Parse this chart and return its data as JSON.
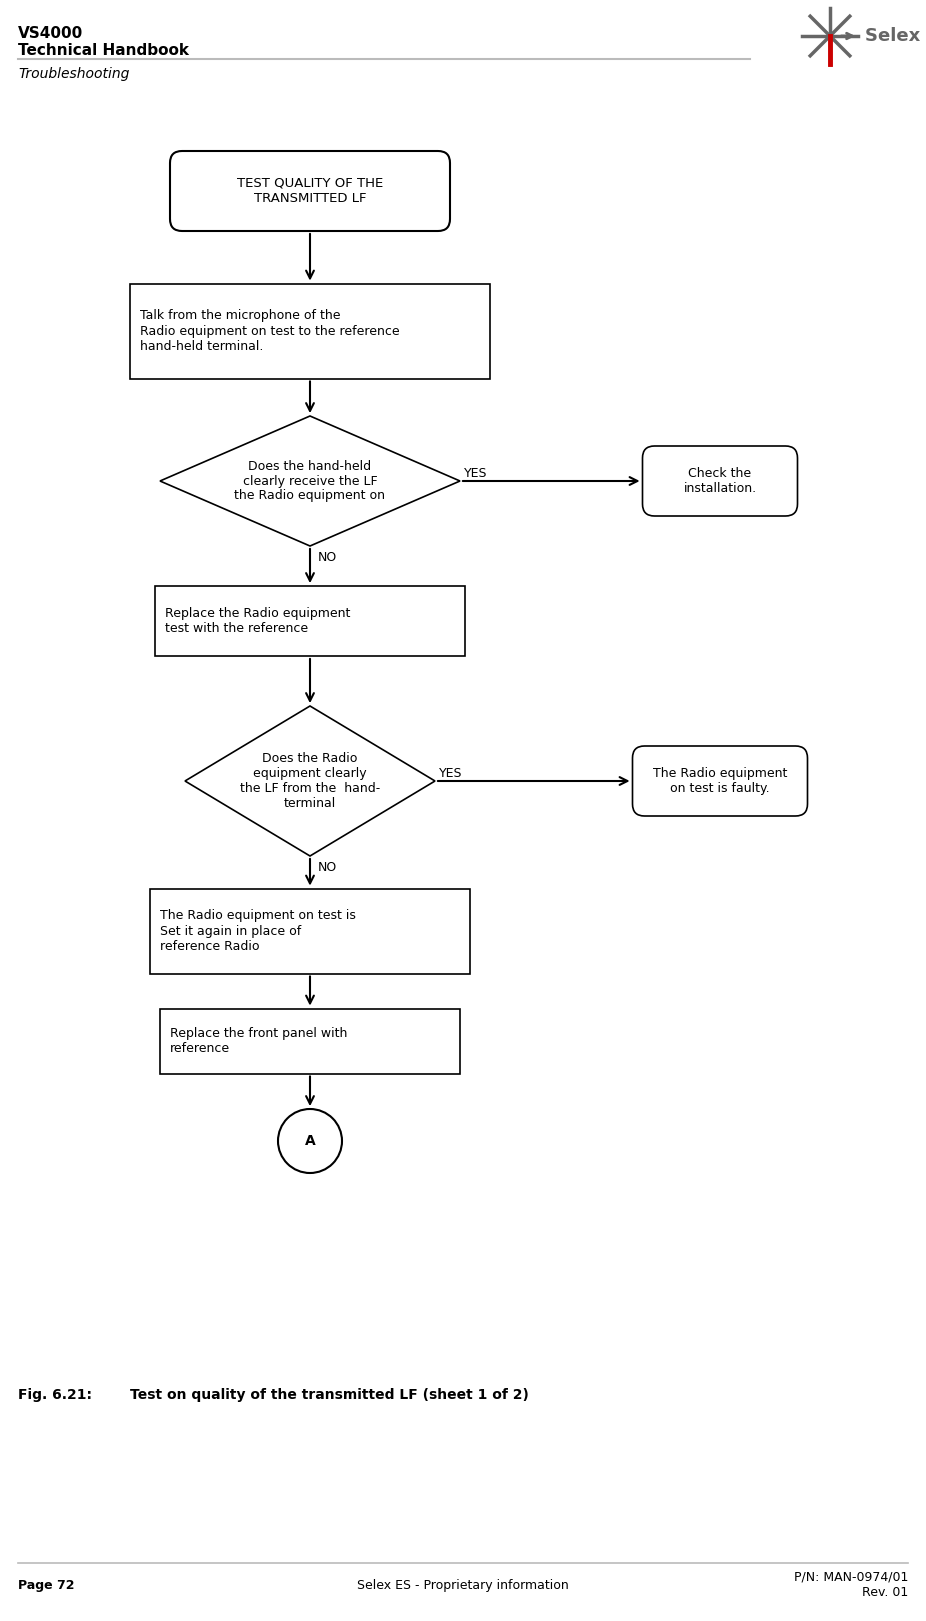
{
  "title_line1": "VS4000",
  "title_line2": "Technical Handbook",
  "subtitle": "Troubleshooting",
  "fig_caption_label": "Fig. 6.21:",
  "fig_caption_text": "Test on quality of the transmitted LF (sheet 1 of 2)",
  "footer_left": "Page 72",
  "footer_center": "Selex ES - Proprietary information",
  "footer_right1": "P/N: MAN-0974/01",
  "footer_right2": "Rev. 01",
  "box1_text": "TEST QUALITY OF THE\nTRANSMITTED LF",
  "box2_text": "Talk from the microphone of the\nRadio equipment on test to the reference\nhand-held terminal.",
  "diamond1_text": "Does the hand-held\nclearly receive the LF\nthe Radio equipment on",
  "box3_text": "Replace the Radio equipment\ntest with the reference",
  "diamond2_text": "Does the Radio\nequipment clearly\nthe LF from the  hand-\nterminal",
  "box4_text": "The Radio equipment on test is\nSet it again in place of\nreference Radio",
  "box5_text": "Replace the front panel with\nreference",
  "connector_text": "A",
  "right_box1_text": "Check the\ninstallation.",
  "right_box2_text": "The Radio equipment\non test is faulty.",
  "yes1": "YES",
  "no1": "NO",
  "yes2": "YES",
  "no2": "NO",
  "bg_color": "#ffffff",
  "box_edge_color": "#000000",
  "arrow_color": "#000000",
  "header_line_color": "#bbbbbb",
  "logo_color": "#666666",
  "logo_red": "#cc0000"
}
